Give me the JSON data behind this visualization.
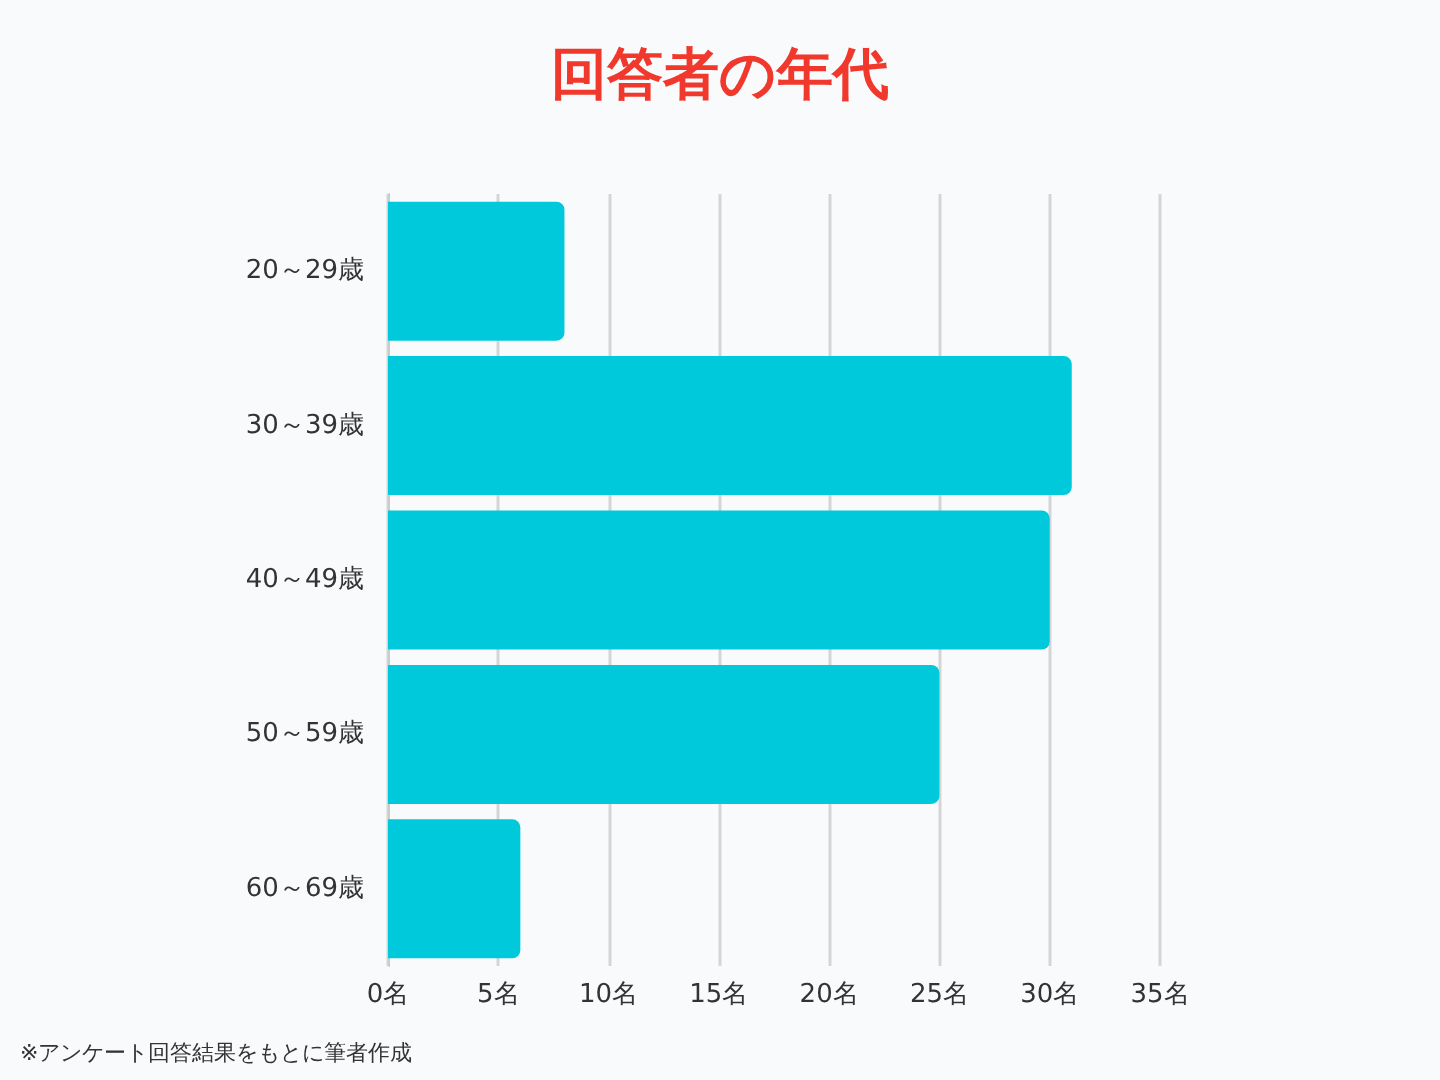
{
  "chart_data": {
    "type": "bar",
    "orientation": "horizontal",
    "title": "回答者の年代",
    "categories": [
      "20～29歳",
      "30～39歳",
      "40～49歳",
      "50～59歳",
      "60～69歳"
    ],
    "values": [
      8,
      31,
      30,
      25,
      6
    ],
    "color": "#00c9db",
    "xlim": [
      0,
      35
    ],
    "xticks": [
      {
        "value": 0,
        "label": "0名"
      },
      {
        "value": 5,
        "label": "5名"
      },
      {
        "value": 10,
        "label": "10名"
      },
      {
        "value": 15,
        "label": "15名"
      },
      {
        "value": 20,
        "label": "20名"
      },
      {
        "value": 25,
        "label": "25名"
      },
      {
        "value": 30,
        "label": "30名"
      },
      {
        "value": 35,
        "label": "35名"
      }
    ],
    "grid": "x",
    "annotations": [
      "※アンケート回答結果をもとに筆者作成"
    ]
  }
}
